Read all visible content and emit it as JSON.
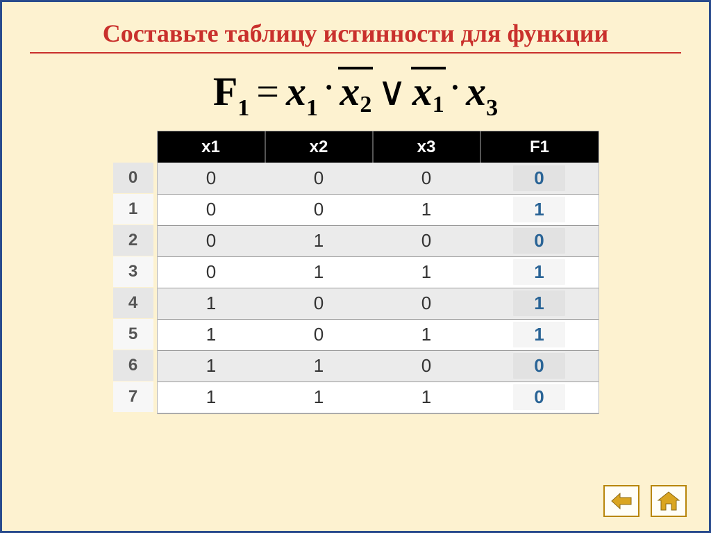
{
  "title": "Составьте таблицу истинности для функции",
  "formula": {
    "func": "F",
    "func_sub": "1",
    "terms": [
      {
        "var": "x",
        "sub": "1",
        "bar": false
      },
      {
        "op": "·"
      },
      {
        "var": "x",
        "sub": "2",
        "bar": true
      },
      {
        "op": "∨"
      },
      {
        "var": "x",
        "sub": "1",
        "bar": true
      },
      {
        "op": "·"
      },
      {
        "var": "x",
        "sub": "3",
        "bar": false
      }
    ]
  },
  "table": {
    "columns": [
      "x1",
      "x2",
      "x3",
      "F1"
    ],
    "row_index": [
      "0",
      "1",
      "2",
      "3",
      "4",
      "5",
      "6",
      "7"
    ],
    "rows": [
      {
        "x1": "0",
        "x2": "0",
        "x3": "0",
        "F1": "0"
      },
      {
        "x1": "0",
        "x2": "0",
        "x3": "1",
        "F1": "1"
      },
      {
        "x1": "0",
        "x2": "1",
        "x3": "0",
        "F1": "0"
      },
      {
        "x1": "0",
        "x2": "1",
        "x3": "1",
        "F1": "1"
      },
      {
        "x1": "1",
        "x2": "0",
        "x3": "0",
        "F1": "1"
      },
      {
        "x1": "1",
        "x2": "0",
        "x3": "1",
        "F1": "1"
      },
      {
        "x1": "1",
        "x2": "1",
        "x3": "0",
        "F1": "0"
      },
      {
        "x1": "1",
        "x2": "1",
        "x3": "1",
        "F1": "0"
      }
    ]
  },
  "colors": {
    "background": "#fdf2d0",
    "border": "#2a4b8d",
    "title": "#c9302c",
    "header_bg": "#000000",
    "header_fg": "#ffffff",
    "row_even": "#ebebeb",
    "row_odd": "#ffffff",
    "f_value": "#2a6496",
    "nav_border": "#b8860b"
  }
}
